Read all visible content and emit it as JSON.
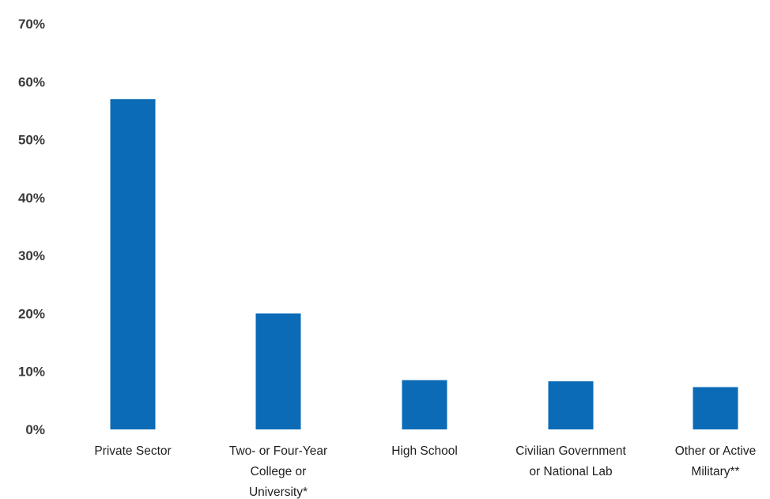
{
  "chart_data": {
    "type": "bar",
    "categories": [
      [
        "Private Sector"
      ],
      [
        "Two- or Four-Year",
        "College or",
        "University*"
      ],
      [
        "High School"
      ],
      [
        "Civilian Government",
        "or National Lab"
      ],
      [
        "Other or Active",
        "Military**"
      ]
    ],
    "values": [
      57,
      20,
      8.5,
      8.3,
      7.3
    ],
    "title": "",
    "xlabel": "",
    "ylabel": "",
    "ylim": [
      0,
      70
    ],
    "yticks": [
      0,
      10,
      20,
      30,
      40,
      50,
      60,
      70
    ],
    "ytick_labels": [
      "0%",
      "10%",
      "20%",
      "30%",
      "40%",
      "50%",
      "60%",
      "70%"
    ],
    "grid": false,
    "bar_color": "#0b6bb7"
  }
}
